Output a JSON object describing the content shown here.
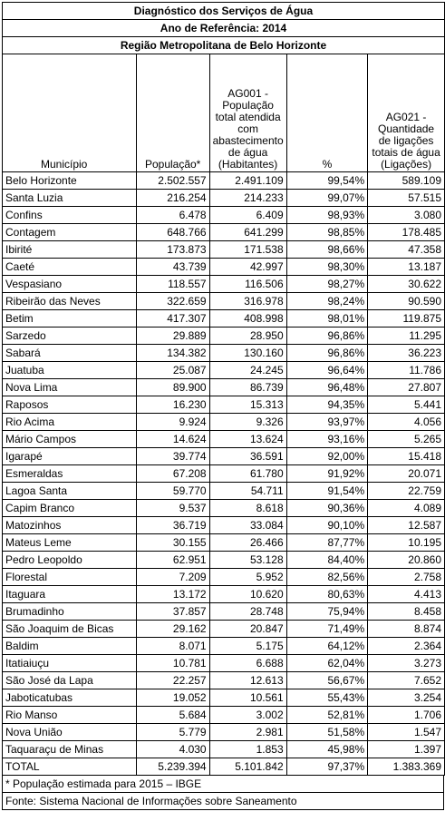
{
  "title": "Diagnóstico dos Serviços de Água",
  "subtitle_year": "Ano de Referência: 2014",
  "subtitle_region": "Região Metropolitana de Belo Horizonte",
  "columns": {
    "municipio": "Município",
    "populacao": "População*",
    "ag001": "AG001 - População total atendida com abastecimento de água (Habitantes)",
    "percent": "%",
    "ag021": "AG021 - Quantidade de ligações totais de água (Ligações)"
  },
  "rows": [
    {
      "municipio": "Belo Horizonte",
      "populacao": "2.502.557",
      "ag001": "2.491.109",
      "percent": "99,54%",
      "ag021": "589.109"
    },
    {
      "municipio": "Santa Luzia",
      "populacao": "216.254",
      "ag001": "214.233",
      "percent": "99,07%",
      "ag021": "57.515"
    },
    {
      "municipio": "Confins",
      "populacao": "6.478",
      "ag001": "6.409",
      "percent": "98,93%",
      "ag021": "3.080"
    },
    {
      "municipio": "Contagem",
      "populacao": "648.766",
      "ag001": "641.299",
      "percent": "98,85%",
      "ag021": "178.485"
    },
    {
      "municipio": "Ibirité",
      "populacao": "173.873",
      "ag001": "171.538",
      "percent": "98,66%",
      "ag021": "47.358"
    },
    {
      "municipio": "Caeté",
      "populacao": "43.739",
      "ag001": "42.997",
      "percent": "98,30%",
      "ag021": "13.187"
    },
    {
      "municipio": "Vespasiano",
      "populacao": "118.557",
      "ag001": "116.506",
      "percent": "98,27%",
      "ag021": "30.622"
    },
    {
      "municipio": "Ribeirão das Neves",
      "populacao": "322.659",
      "ag001": "316.978",
      "percent": "98,24%",
      "ag021": "90.590"
    },
    {
      "municipio": "Betim",
      "populacao": "417.307",
      "ag001": "408.998",
      "percent": "98,01%",
      "ag021": "119.875"
    },
    {
      "municipio": "Sarzedo",
      "populacao": "29.889",
      "ag001": "28.950",
      "percent": "96,86%",
      "ag021": "11.295"
    },
    {
      "municipio": "Sabará",
      "populacao": "134.382",
      "ag001": "130.160",
      "percent": "96,86%",
      "ag021": "36.223"
    },
    {
      "municipio": "Juatuba",
      "populacao": "25.087",
      "ag001": "24.245",
      "percent": "96,64%",
      "ag021": "11.786"
    },
    {
      "municipio": "Nova Lima",
      "populacao": "89.900",
      "ag001": "86.739",
      "percent": "96,48%",
      "ag021": "27.807"
    },
    {
      "municipio": "Raposos",
      "populacao": "16.230",
      "ag001": "15.313",
      "percent": "94,35%",
      "ag021": "5.441"
    },
    {
      "municipio": "Rio Acima",
      "populacao": "9.924",
      "ag001": "9.326",
      "percent": "93,97%",
      "ag021": "4.056"
    },
    {
      "municipio": "Mário Campos",
      "populacao": "14.624",
      "ag001": "13.624",
      "percent": "93,16%",
      "ag021": "5.265"
    },
    {
      "municipio": "Igarapé",
      "populacao": "39.774",
      "ag001": "36.591",
      "percent": "92,00%",
      "ag021": "15.418"
    },
    {
      "municipio": "Esmeraldas",
      "populacao": "67.208",
      "ag001": "61.780",
      "percent": "91,92%",
      "ag021": "20.071"
    },
    {
      "municipio": "Lagoa Santa",
      "populacao": "59.770",
      "ag001": "54.711",
      "percent": "91,54%",
      "ag021": "22.759"
    },
    {
      "municipio": "Capim Branco",
      "populacao": "9.537",
      "ag001": "8.618",
      "percent": "90,36%",
      "ag021": "4.089"
    },
    {
      "municipio": "Matozinhos",
      "populacao": "36.719",
      "ag001": "33.084",
      "percent": "90,10%",
      "ag021": "12.587"
    },
    {
      "municipio": "Mateus Leme",
      "populacao": "30.155",
      "ag001": "26.466",
      "percent": "87,77%",
      "ag021": "10.195"
    },
    {
      "municipio": "Pedro Leopoldo",
      "populacao": "62.951",
      "ag001": "53.128",
      "percent": "84,40%",
      "ag021": "20.860"
    },
    {
      "municipio": "Florestal",
      "populacao": "7.209",
      "ag001": "5.952",
      "percent": "82,56%",
      "ag021": "2.758"
    },
    {
      "municipio": "Itaguara",
      "populacao": "13.172",
      "ag001": "10.620",
      "percent": "80,63%",
      "ag021": "4.413"
    },
    {
      "municipio": "Brumadinho",
      "populacao": "37.857",
      "ag001": "28.748",
      "percent": "75,94%",
      "ag021": "8.458"
    },
    {
      "municipio": "São Joaquim de Bicas",
      "populacao": "29.162",
      "ag001": "20.847",
      "percent": "71,49%",
      "ag021": "8.874"
    },
    {
      "municipio": "Baldim",
      "populacao": "8.071",
      "ag001": "5.175",
      "percent": "64,12%",
      "ag021": "2.364"
    },
    {
      "municipio": "Itatiaiuçu",
      "populacao": "10.781",
      "ag001": "6.688",
      "percent": "62,04%",
      "ag021": "3.273"
    },
    {
      "municipio": "São José da Lapa",
      "populacao": "22.257",
      "ag001": "12.613",
      "percent": "56,67%",
      "ag021": "7.652"
    },
    {
      "municipio": "Jaboticatubas",
      "populacao": "19.052",
      "ag001": "10.561",
      "percent": "55,43%",
      "ag021": "3.254"
    },
    {
      "municipio": "Rio Manso",
      "populacao": "5.684",
      "ag001": "3.002",
      "percent": "52,81%",
      "ag021": "1.706"
    },
    {
      "municipio": "Nova União",
      "populacao": "5.779",
      "ag001": "2.981",
      "percent": "51,58%",
      "ag021": "1.547"
    },
    {
      "municipio": "Taquaraçu de Minas",
      "populacao": "4.030",
      "ag001": "1.853",
      "percent": "45,98%",
      "ag021": "1.397"
    }
  ],
  "total": {
    "municipio": "TOTAL",
    "populacao": "5.239.394",
    "ag001": "5.101.842",
    "percent": "97,37%",
    "ag021": "1.383.369"
  },
  "footnote": "* População estimada para 2015 – IBGE",
  "source": "Fonte: Sistema Nacional de Informações sobre Saneamento"
}
